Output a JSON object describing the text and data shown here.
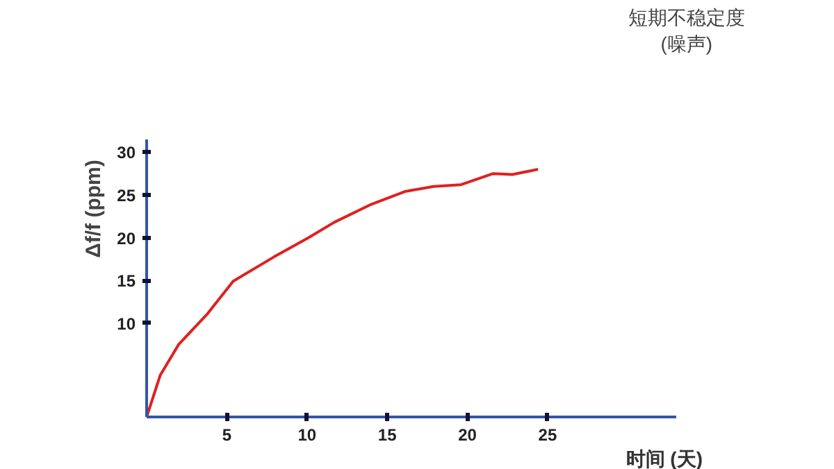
{
  "chart_data": {
    "type": "line",
    "xlabel": "时间 (天)",
    "ylabel": "Δf/f (ppm)",
    "x": [
      0,
      0.85,
      2.0,
      3.8,
      5.4,
      7.9,
      10.1,
      11.7,
      14.0,
      16.1,
      17.9,
      19.6,
      21.6,
      22.8,
      24.4
    ],
    "series": [
      {
        "color": "#e02020",
        "values": [
          -1,
          3.9,
          7.5,
          11.1,
          14.9,
          17.7,
          20.0,
          21.8,
          23.9,
          25.4,
          26.0,
          26.2,
          27.5,
          27.4,
          28.0
        ]
      }
    ],
    "xlim": [
      0,
      33
    ],
    "ylim": [
      -1,
      31.5
    ],
    "xticks": [
      5,
      10,
      15,
      20,
      25
    ],
    "yticks": [
      10,
      15,
      20,
      25,
      30
    ],
    "annotations": [
      "短期不稳定度\n(噪声)"
    ],
    "grid": false,
    "marker": "none",
    "line_style": "solid"
  }
}
